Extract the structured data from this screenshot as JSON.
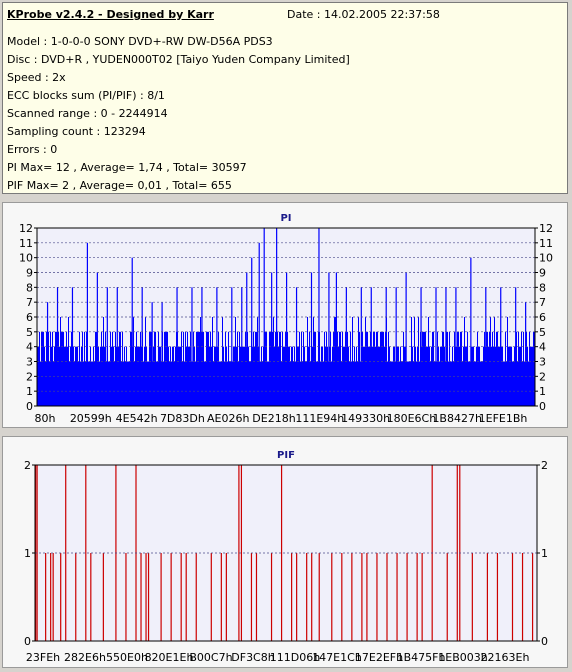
{
  "header": {
    "app_title": "KProbe v2.4.2 - Designed by Karr",
    "date": "Date : 14.02.2005 22:37:58"
  },
  "info": [
    "Model : 1-0-0-0 SONY    DVD+-RW DW-D56A  PDS3",
    "Disc : DVD+R , YUDEN000T02 [Taiyo Yuden Company Limited]",
    "Speed : 2x",
    "ECC blocks sum (PI/PIF) : 8/1",
    "Scanned range : 0 - 2244914",
    "Sampling count : 123294",
    "Errors : 0",
    "PI Max= 12 , Average= 1,74 , Total= 30597",
    "PIF Max= 2 , Average= 0,01 , Total= 655"
  ],
  "colors": {
    "pi_bars": "#0000ff",
    "pif_bars": "#cc0000",
    "grid": "#4a4a8a",
    "plot_bg": "#f0f0fa"
  },
  "chart_data": [
    {
      "type": "bar",
      "title": "PI",
      "ylim": [
        0,
        12
      ],
      "yticks": [
        "0",
        "1",
        "2",
        "3",
        "4",
        "5",
        "6",
        "7",
        "8",
        "9",
        "10",
        "11",
        "12"
      ],
      "xticks": [
        "80h",
        "20599h",
        "4E542h",
        "7D83Dh",
        "AE026h",
        "DE218h",
        "111E94h",
        "149330h",
        "180E6Ch",
        "1B8427h",
        "1EFE1Bh"
      ],
      "grid": true,
      "baseline": {
        "typical_low": 3,
        "typical_high": 5
      },
      "peaks": [
        {
          "pos": 0.02,
          "value": 7
        },
        {
          "pos": 0.04,
          "value": 8
        },
        {
          "pos": 0.07,
          "value": 8
        },
        {
          "pos": 0.1,
          "value": 11
        },
        {
          "pos": 0.12,
          "value": 9
        },
        {
          "pos": 0.14,
          "value": 8
        },
        {
          "pos": 0.16,
          "value": 8
        },
        {
          "pos": 0.19,
          "value": 10
        },
        {
          "pos": 0.21,
          "value": 8
        },
        {
          "pos": 0.23,
          "value": 7
        },
        {
          "pos": 0.25,
          "value": 7
        },
        {
          "pos": 0.28,
          "value": 8
        },
        {
          "pos": 0.31,
          "value": 8
        },
        {
          "pos": 0.33,
          "value": 8
        },
        {
          "pos": 0.36,
          "value": 8
        },
        {
          "pos": 0.39,
          "value": 8
        },
        {
          "pos": 0.41,
          "value": 8
        },
        {
          "pos": 0.42,
          "value": 9
        },
        {
          "pos": 0.43,
          "value": 10
        },
        {
          "pos": 0.445,
          "value": 11
        },
        {
          "pos": 0.455,
          "value": 12
        },
        {
          "pos": 0.47,
          "value": 9
        },
        {
          "pos": 0.48,
          "value": 12
        },
        {
          "pos": 0.5,
          "value": 9
        },
        {
          "pos": 0.52,
          "value": 8
        },
        {
          "pos": 0.55,
          "value": 9
        },
        {
          "pos": 0.565,
          "value": 12
        },
        {
          "pos": 0.585,
          "value": 9
        },
        {
          "pos": 0.6,
          "value": 9
        },
        {
          "pos": 0.62,
          "value": 8
        },
        {
          "pos": 0.65,
          "value": 8
        },
        {
          "pos": 0.67,
          "value": 8
        },
        {
          "pos": 0.7,
          "value": 8
        },
        {
          "pos": 0.72,
          "value": 8
        },
        {
          "pos": 0.74,
          "value": 9
        },
        {
          "pos": 0.77,
          "value": 8
        },
        {
          "pos": 0.8,
          "value": 8
        },
        {
          "pos": 0.82,
          "value": 8
        },
        {
          "pos": 0.84,
          "value": 8
        },
        {
          "pos": 0.87,
          "value": 10
        },
        {
          "pos": 0.9,
          "value": 8
        },
        {
          "pos": 0.93,
          "value": 8
        },
        {
          "pos": 0.96,
          "value": 8
        },
        {
          "pos": 0.98,
          "value": 7
        }
      ]
    },
    {
      "type": "bar",
      "title": "PIF",
      "ylim": [
        0,
        2
      ],
      "yticks": [
        "0",
        "1",
        "2"
      ],
      "xticks": [
        "23FEh",
        "282E6h",
        "550E0h",
        "820E1Eh",
        "B00C7h",
        "DF3C8h",
        "111D06h",
        "147E1Ch",
        "17E2EFh",
        "1B475Fh",
        "1EB003h",
        "22163Eh"
      ],
      "grid": true,
      "events": [
        {
          "pos": 0.0,
          "value": 2
        },
        {
          "pos": 0.003,
          "value": 2
        },
        {
          "pos": 0.02,
          "value": 1
        },
        {
          "pos": 0.03,
          "value": 1
        },
        {
          "pos": 0.035,
          "value": 1
        },
        {
          "pos": 0.05,
          "value": 1
        },
        {
          "pos": 0.06,
          "value": 2
        },
        {
          "pos": 0.08,
          "value": 1
        },
        {
          "pos": 0.1,
          "value": 2
        },
        {
          "pos": 0.11,
          "value": 1
        },
        {
          "pos": 0.135,
          "value": 1
        },
        {
          "pos": 0.16,
          "value": 2
        },
        {
          "pos": 0.18,
          "value": 1
        },
        {
          "pos": 0.2,
          "value": 2
        },
        {
          "pos": 0.21,
          "value": 1
        },
        {
          "pos": 0.22,
          "value": 1
        },
        {
          "pos": 0.225,
          "value": 1
        },
        {
          "pos": 0.25,
          "value": 1
        },
        {
          "pos": 0.27,
          "value": 1
        },
        {
          "pos": 0.29,
          "value": 1
        },
        {
          "pos": 0.3,
          "value": 1
        },
        {
          "pos": 0.32,
          "value": 1
        },
        {
          "pos": 0.35,
          "value": 1
        },
        {
          "pos": 0.37,
          "value": 1
        },
        {
          "pos": 0.38,
          "value": 1
        },
        {
          "pos": 0.405,
          "value": 2
        },
        {
          "pos": 0.41,
          "value": 2
        },
        {
          "pos": 0.43,
          "value": 1
        },
        {
          "pos": 0.44,
          "value": 1
        },
        {
          "pos": 0.47,
          "value": 1
        },
        {
          "pos": 0.49,
          "value": 2
        },
        {
          "pos": 0.51,
          "value": 1
        },
        {
          "pos": 0.52,
          "value": 1
        },
        {
          "pos": 0.54,
          "value": 1
        },
        {
          "pos": 0.55,
          "value": 1
        },
        {
          "pos": 0.565,
          "value": 1
        },
        {
          "pos": 0.59,
          "value": 1
        },
        {
          "pos": 0.61,
          "value": 1
        },
        {
          "pos": 0.63,
          "value": 1
        },
        {
          "pos": 0.65,
          "value": 1
        },
        {
          "pos": 0.66,
          "value": 1
        },
        {
          "pos": 0.68,
          "value": 1
        },
        {
          "pos": 0.7,
          "value": 1
        },
        {
          "pos": 0.72,
          "value": 1
        },
        {
          "pos": 0.74,
          "value": 1
        },
        {
          "pos": 0.76,
          "value": 1
        },
        {
          "pos": 0.77,
          "value": 1
        },
        {
          "pos": 0.79,
          "value": 2
        },
        {
          "pos": 0.82,
          "value": 1
        },
        {
          "pos": 0.84,
          "value": 2
        },
        {
          "pos": 0.845,
          "value": 2
        },
        {
          "pos": 0.87,
          "value": 1
        },
        {
          "pos": 0.9,
          "value": 1
        },
        {
          "pos": 0.92,
          "value": 1
        },
        {
          "pos": 0.95,
          "value": 1
        },
        {
          "pos": 0.97,
          "value": 1
        },
        {
          "pos": 0.99,
          "value": 1
        }
      ]
    }
  ]
}
